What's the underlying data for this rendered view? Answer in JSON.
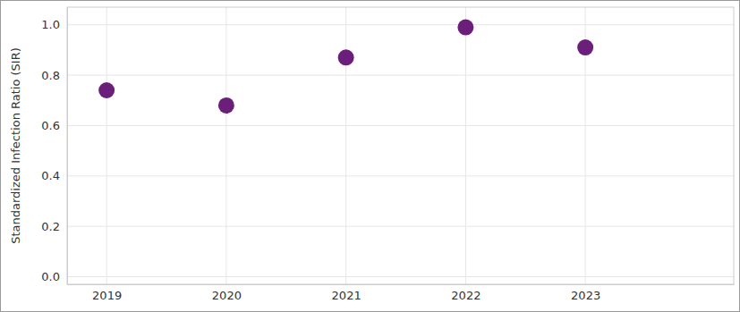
{
  "chart_data": {
    "type": "scatter",
    "y_label": "Standardized Infection Ratio (SIR)",
    "x": [
      2019,
      2020,
      2021,
      2022,
      2023
    ],
    "values": [
      0.74,
      0.68,
      0.87,
      0.99,
      0.91
    ],
    "color": "#6b1f7b",
    "marker": "circle",
    "xlim": [
      2018.67,
      2024.24
    ],
    "xticks": [
      2019,
      2020,
      2021,
      2022,
      2023
    ],
    "ylim": [
      -0.03,
      1.07
    ],
    "yticks": [
      {
        "value": 0,
        "label": "0.0"
      },
      0.2,
      0.4,
      0.6,
      0.8,
      {
        "value": 1,
        "label": "1.0"
      }
    ],
    "grid": true
  }
}
